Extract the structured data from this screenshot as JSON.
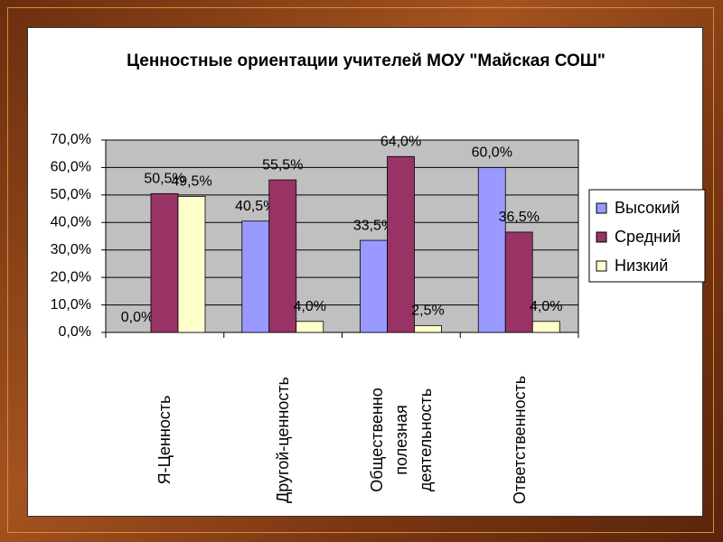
{
  "chart_data": {
    "type": "bar",
    "title": "Ценностные ориентации учителей МОУ \"Майская СОШ\"",
    "categories": [
      "Я-Ценность",
      "Другой-ценность",
      "Общественно полезная деятельность",
      "Ответственность"
    ],
    "series": [
      {
        "name": "Высокий",
        "color": "#9999ff",
        "values": [
          0,
          40.5,
          33.5,
          60
        ],
        "value_labels": [
          "0,0%",
          "40,5%",
          "33,5%",
          "60,0%"
        ]
      },
      {
        "name": "Средний",
        "color": "#993366",
        "values": [
          50.5,
          55.5,
          64,
          36.5
        ],
        "value_labels": [
          "50,5%",
          "55,5%",
          "64,0%",
          "36,5%"
        ]
      },
      {
        "name": "Низкий",
        "color": "#ffffcc",
        "values": [
          49.5,
          4,
          2.5,
          4
        ],
        "value_labels": [
          "49,5%",
          "4,0%",
          "2,5%",
          "4,0%"
        ]
      }
    ],
    "ylim": [
      0,
      70
    ],
    "yticks": [
      {
        "value": 0,
        "label": "0,0%"
      },
      {
        "value": 10,
        "label": "10,0%"
      },
      {
        "value": 20,
        "label": "20,0%"
      },
      {
        "value": 30,
        "label": "30,0%"
      },
      {
        "value": 40,
        "label": "40,0%"
      },
      {
        "value": 50,
        "label": "50,0%"
      },
      {
        "value": 60,
        "label": "60,0%"
      },
      {
        "value": 70,
        "label": "70,0%"
      }
    ],
    "grid": true,
    "legend": "right"
  }
}
